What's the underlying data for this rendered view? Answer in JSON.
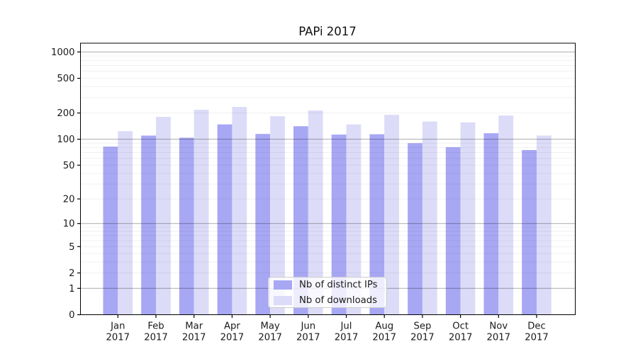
{
  "chart_data": {
    "type": "bar",
    "title": "PAPi 2017",
    "categories": [
      "Jan 2017",
      "Feb 2017",
      "Mar 2017",
      "Apr 2017",
      "May 2017",
      "Jun 2017",
      "Jul 2017",
      "Aug 2017",
      "Sep 2017",
      "Oct 2017",
      "Nov 2017",
      "Dec 2017"
    ],
    "month_labels": [
      "Jan",
      "Feb",
      "Mar",
      "Apr",
      "May",
      "Jun",
      "Jul",
      "Aug",
      "Sep",
      "Oct",
      "Nov",
      "Dec"
    ],
    "year_label": "2017",
    "series": [
      {
        "name": "Nb of distinct IPs",
        "color": "#a7a7f4",
        "values": [
          82,
          110,
          104,
          148,
          115,
          141,
          113,
          114,
          90,
          81,
          117,
          75
        ]
      },
      {
        "name": "Nb of downloads",
        "color": "#dcdcf8",
        "values": [
          124,
          181,
          218,
          235,
          184,
          214,
          148,
          191,
          160,
          156,
          187,
          110
        ]
      }
    ],
    "yscale": "log1p",
    "yticks": [
      0,
      1,
      2,
      5,
      10,
      20,
      50,
      100,
      200,
      500,
      1000
    ],
    "ylim": [
      0,
      1260
    ],
    "grid": "both",
    "legend_position": "lower center",
    "colors": {
      "spine": "#000000",
      "tick_text": "#1a1a1a",
      "major_grid": "rgba(0,0,0,0.33)",
      "minor_grid": "rgba(0,0,0,0.055)"
    }
  }
}
